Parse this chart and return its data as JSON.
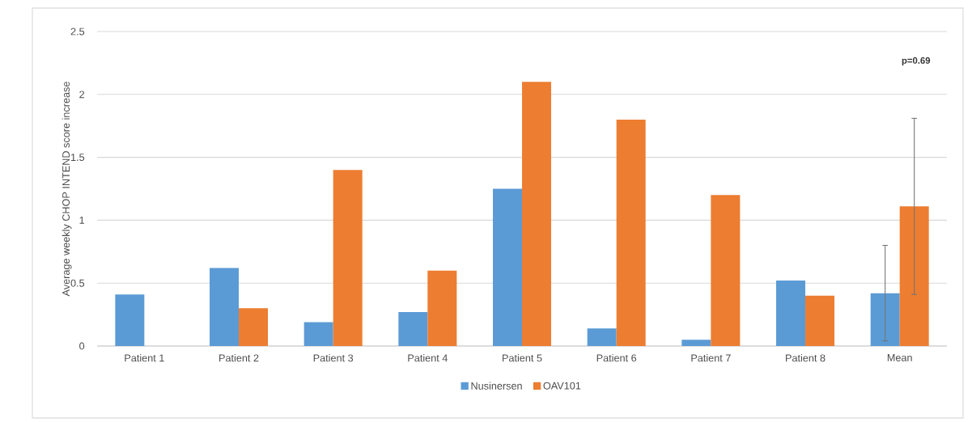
{
  "chart_data": {
    "type": "bar",
    "ylabel": "Average weekly CHOP INTEND score increase",
    "categories": [
      "Patient 1",
      "Patient 2",
      "Patient 3",
      "Patient 4",
      "Patient 5",
      "Patient 6",
      "Patient 7",
      "Patient 8",
      "Mean"
    ],
    "series": [
      {
        "name": "Nusinersen",
        "color": "#5b9bd5",
        "values": [
          0.41,
          0.62,
          0.19,
          0.27,
          1.25,
          0.14,
          0.05,
          0.52,
          0.42
        ],
        "errors": [
          null,
          null,
          null,
          null,
          null,
          null,
          null,
          null,
          0.38
        ]
      },
      {
        "name": "OAV101",
        "color": "#ed7d31",
        "values": [
          null,
          0.3,
          1.4,
          0.6,
          2.1,
          1.8,
          1.2,
          0.4,
          1.11
        ],
        "errors": [
          null,
          null,
          null,
          null,
          null,
          null,
          null,
          null,
          0.7
        ]
      }
    ],
    "ylim": [
      0,
      2.5
    ],
    "yticks": [
      0,
      0.5,
      1,
      1.5,
      2,
      2.5
    ],
    "grid": "y",
    "legend": "bottom",
    "annotations": [
      "p=0.69"
    ]
  }
}
